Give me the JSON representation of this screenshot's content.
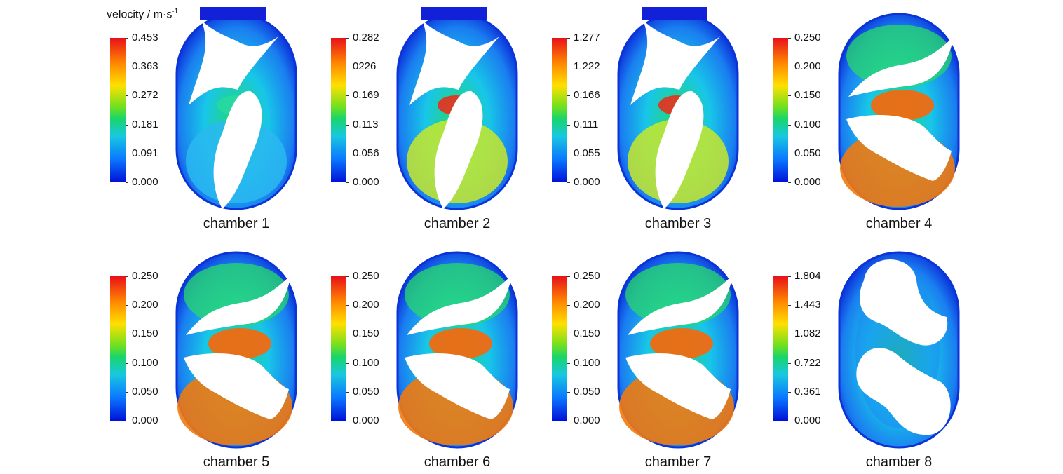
{
  "figure": {
    "unit_label": "velocity  / m·s",
    "unit_exponent": "-1"
  },
  "panels": [
    {
      "caption": "chamber 1",
      "ticks": [
        "0.453",
        "0.363",
        "0.272",
        "0.181",
        "0.091",
        "0.000"
      ],
      "view": "vertical-rotors"
    },
    {
      "caption": "chamber 2",
      "ticks": [
        "0.282",
        "0226",
        "0.169",
        "0.113",
        "0.056",
        "0.000"
      ],
      "view": "vertical-rotors"
    },
    {
      "caption": "chamber 3",
      "ticks": [
        "1.277",
        "1.222",
        "0.166",
        "0.111",
        "0.055",
        "0.000"
      ],
      "view": "vertical-rotors"
    },
    {
      "caption": "chamber 4",
      "ticks": [
        "0.250",
        "0.200",
        "0.150",
        "0.100",
        "0.050",
        "0.000"
      ],
      "view": "horizontal-rotors"
    },
    {
      "caption": "chamber 5",
      "ticks": [
        "0.250",
        "0.200",
        "0.150",
        "0.100",
        "0.050",
        "0.000"
      ],
      "view": "horizontal-rotors"
    },
    {
      "caption": "chamber 6",
      "ticks": [
        "0.250",
        "0.200",
        "0.150",
        "0.100",
        "0.050",
        "0.000"
      ],
      "view": "horizontal-rotors"
    },
    {
      "caption": "chamber 7",
      "ticks": [
        "0.250",
        "0.200",
        "0.150",
        "0.100",
        "0.050",
        "0.000"
      ],
      "view": "horizontal-rotors"
    },
    {
      "caption": "chamber 8",
      "ticks": [
        "1.804",
        "1.443",
        "1.082",
        "0.722",
        "0.361",
        "0.000"
      ],
      "view": "lobe-rotors"
    }
  ]
}
